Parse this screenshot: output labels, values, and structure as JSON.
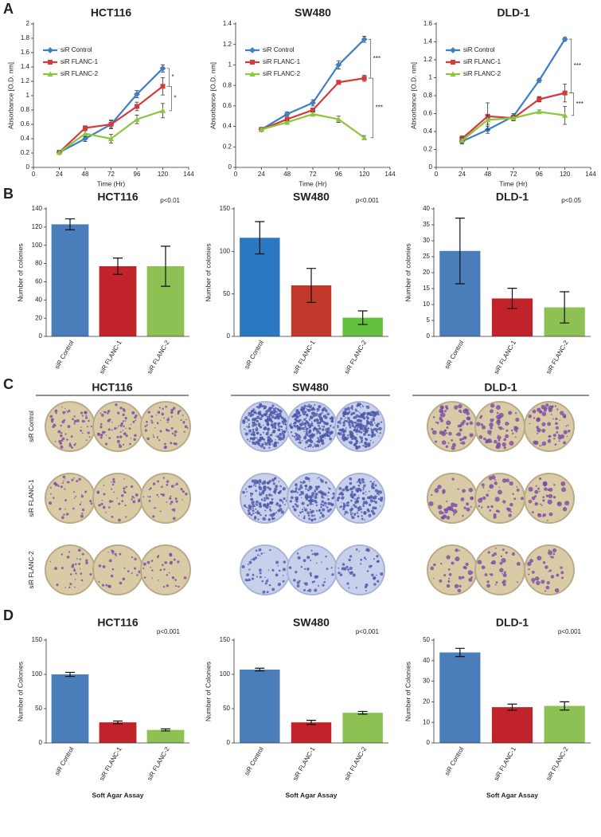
{
  "panel_labels": [
    "A",
    "B",
    "C",
    "D"
  ],
  "colony_images": {
    "columns": [
      "HCT116",
      "SW480",
      "DLD-1"
    ],
    "rows": [
      "siR Control",
      "siR FLANC-1",
      "siR FLANC-2"
    ]
  },
  "chart_data": [
    {
      "type": "line",
      "title": "HCT116",
      "x_label": "Time (Hr)",
      "y_label": "Absorbance [O.D. nm]",
      "x": [
        24,
        48,
        72,
        96,
        120
      ],
      "xlim": [
        0,
        144
      ],
      "xticks": [
        0,
        24,
        48,
        72,
        96,
        120,
        144
      ],
      "ylim": [
        0,
        2
      ],
      "yticks": [
        0,
        0.2,
        0.4,
        0.6,
        0.8,
        1,
        1.2,
        1.4,
        1.6,
        1.8,
        2
      ],
      "legend": "upper left",
      "annotations": [
        "*",
        "*"
      ],
      "series": [
        {
          "name": "siR Control",
          "color": "#3f7fc4",
          "marker": "diamond",
          "values": [
            0.21,
            0.4,
            0.6,
            1.02,
            1.38
          ],
          "errors": [
            0.02,
            0.04,
            0.05,
            0.05,
            0.05
          ]
        },
        {
          "name": "siR FLANC-1",
          "color": "#d23c3c",
          "marker": "square",
          "values": [
            0.21,
            0.55,
            0.6,
            0.85,
            1.13
          ],
          "errors": [
            0.02,
            0.03,
            0.06,
            0.06,
            0.12
          ]
        },
        {
          "name": "siR FLANC-2",
          "color": "#8cc63f",
          "marker": "triangle",
          "values": [
            0.21,
            0.47,
            0.4,
            0.67,
            0.79
          ],
          "errors": [
            0.02,
            0.04,
            0.06,
            0.06,
            0.1
          ]
        }
      ]
    },
    {
      "type": "line",
      "title": "SW480",
      "x_label": "Time (Hr)",
      "y_label": "Absorbance [O.D. nm]",
      "x": [
        24,
        48,
        72,
        96,
        120
      ],
      "xlim": [
        0,
        144
      ],
      "xticks": [
        0,
        24,
        48,
        72,
        96,
        120,
        144
      ],
      "ylim": [
        0,
        1.4
      ],
      "yticks": [
        0,
        0.2,
        0.4,
        0.6,
        0.8,
        1,
        1.2,
        1.4
      ],
      "legend": "upper left",
      "annotations": [
        "***",
        "***"
      ],
      "series": [
        {
          "name": "siR Control",
          "color": "#3f7fc4",
          "marker": "diamond",
          "values": [
            0.37,
            0.52,
            0.63,
            1.0,
            1.25
          ],
          "errors": [
            0.02,
            0.02,
            0.03,
            0.04,
            0.03
          ]
        },
        {
          "name": "siR FLANC-1",
          "color": "#d23c3c",
          "marker": "square",
          "values": [
            0.37,
            0.47,
            0.56,
            0.83,
            0.87
          ],
          "errors": [
            0.02,
            0.02,
            0.02,
            0.02,
            0.03
          ]
        },
        {
          "name": "siR FLANC-2",
          "color": "#8cc63f",
          "marker": "triangle",
          "values": [
            0.37,
            0.44,
            0.52,
            0.47,
            0.29
          ],
          "errors": [
            0.02,
            0.02,
            0.02,
            0.03,
            0.02
          ]
        }
      ]
    },
    {
      "type": "line",
      "title": "DLD-1",
      "x_label": "Time (Hr)",
      "y_label": "Absorbance [O.D. nm]",
      "x": [
        24,
        48,
        72,
        96,
        120
      ],
      "xlim": [
        0,
        144
      ],
      "xticks": [
        0,
        24,
        48,
        72,
        96,
        120,
        144
      ],
      "ylim": [
        0,
        1.6
      ],
      "yticks": [
        0,
        0.2,
        0.4,
        0.6,
        0.8,
        1,
        1.2,
        1.4,
        1.6
      ],
      "legend": "upper left",
      "annotations": [
        "***",
        "***"
      ],
      "series": [
        {
          "name": "siR Control",
          "color": "#3f7fc4",
          "marker": "diamond",
          "values": [
            0.29,
            0.42,
            0.57,
            0.97,
            1.43
          ],
          "errors": [
            0.03,
            0.04,
            0.03,
            0.02,
            0.02
          ]
        },
        {
          "name": "siR FLANC-1",
          "color": "#d23c3c",
          "marker": "square",
          "values": [
            0.32,
            0.57,
            0.55,
            0.76,
            0.83
          ],
          "errors": [
            0.03,
            0.15,
            0.03,
            0.03,
            0.1
          ]
        },
        {
          "name": "siR FLANC-2",
          "color": "#8cc63f",
          "marker": "triangle",
          "values": [
            0.3,
            0.53,
            0.55,
            0.62,
            0.58
          ],
          "errors": [
            0.03,
            0.05,
            0.03,
            0.02,
            0.1
          ]
        }
      ]
    },
    {
      "type": "bar",
      "title": "HCT116",
      "y_label": "Number of colonies",
      "annotation": "p<0.01",
      "categories": [
        "siR Control",
        "siR FLANC-1",
        "siR FLANC-2"
      ],
      "values": [
        123,
        77,
        77
      ],
      "errors": [
        6,
        9,
        22
      ],
      "colors": [
        "#4a7ebb",
        "#c0232a",
        "#8dc153"
      ],
      "ylim": [
        0,
        140
      ],
      "yticks": [
        0,
        20,
        40,
        60,
        80,
        100,
        120,
        140
      ]
    },
    {
      "type": "bar",
      "title": "SW480",
      "y_label": "Number of colonies",
      "annotation": "p<0.001",
      "categories": [
        "siR Control",
        "siR FLANC-1",
        "siR FLANC-2"
      ],
      "values": [
        116,
        60,
        22
      ],
      "errors": [
        19,
        20,
        8
      ],
      "colors": [
        "#2a78c2",
        "#c0392b",
        "#63c13f"
      ],
      "ylim": [
        0,
        150
      ],
      "yticks": [
        0,
        50,
        100,
        150
      ]
    },
    {
      "type": "bar",
      "title": "DLD-1",
      "y_label": "Number of colonies",
      "annotation": "p<0.05",
      "categories": [
        "siR Control",
        "siR FLANC-1",
        "siR FLANC-2"
      ],
      "values": [
        26.8,
        11.9,
        9.1
      ],
      "errors": [
        10.3,
        3.2,
        4.9
      ],
      "colors": [
        "#4a7ebb",
        "#c0232a",
        "#8dc153"
      ],
      "ylim": [
        0,
        40
      ],
      "yticks": [
        0,
        5,
        10,
        15,
        20,
        25,
        30,
        35,
        40
      ]
    },
    {
      "type": "bar",
      "title": "HCT116",
      "y_label": "Number of Colonies",
      "x_label": "Soft Agar Assay",
      "annotation": "p<0.001",
      "categories": [
        "siR Control",
        "siR FLANC-1",
        "siR FLANC-2"
      ],
      "values": [
        100,
        30,
        19
      ],
      "errors": [
        3,
        2,
        1.5
      ],
      "colors": [
        "#4a7ebb",
        "#c0232a",
        "#8dc153"
      ],
      "ylim": [
        0,
        150
      ],
      "yticks": [
        0,
        50,
        100,
        150
      ]
    },
    {
      "type": "bar",
      "title": "SW480",
      "y_label": "Number of Colonies",
      "x_label": "Soft Agar Assay",
      "annotation": "p<0.001",
      "categories": [
        "siR Control",
        "siR FLANC-1",
        "siR FLANC-2"
      ],
      "values": [
        107,
        30,
        44
      ],
      "errors": [
        2,
        3,
        2
      ],
      "colors": [
        "#4a7ebb",
        "#c0232a",
        "#8dc153"
      ],
      "ylim": [
        0,
        150
      ],
      "yticks": [
        0,
        50,
        100,
        150
      ]
    },
    {
      "type": "bar",
      "title": "DLD-1",
      "y_label": "Number of Colonies",
      "x_label": "Soft Agar Assay",
      "annotation": "p<0.001",
      "categories": [
        "siR Control",
        "siR FLANC-1",
        "siR FLANC-2"
      ],
      "values": [
        44,
        17.4,
        18
      ],
      "errors": [
        2,
        1.5,
        2
      ],
      "colors": [
        "#4a7ebb",
        "#c0232a",
        "#8dc153"
      ],
      "ylim": [
        0,
        50
      ],
      "yticks": [
        0,
        10,
        20,
        30,
        40,
        50
      ]
    }
  ]
}
